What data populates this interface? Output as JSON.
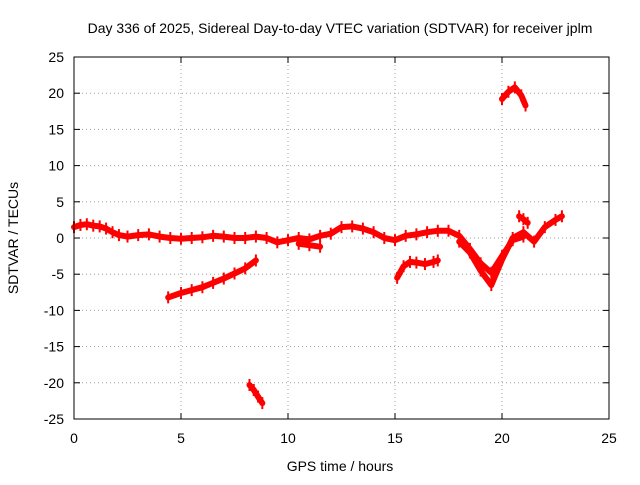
{
  "chart_data": {
    "type": "scatter",
    "title": "Day 336 of 2025, Sidereal Day-to-day VTEC variation (SDTVAR) for receiver jplm",
    "xlabel": "GPS time / hours",
    "ylabel": "SDTVAR / TECUs",
    "xlim": [
      0,
      25
    ],
    "ylim": [
      -25,
      25
    ],
    "xticks": [
      0,
      5,
      10,
      15,
      20,
      25
    ],
    "yticks": [
      -25,
      -20,
      -15,
      -10,
      -5,
      0,
      5,
      10,
      15,
      20,
      25
    ],
    "grid": true,
    "legend": "none",
    "series": [
      {
        "name": "main-band",
        "color": "#ff0000",
        "x": [
          0.0,
          0.3,
          0.6,
          0.9,
          1.2,
          1.5,
          1.8,
          2.1,
          2.5,
          3.0,
          3.5,
          4.0,
          4.5,
          5.0,
          5.5,
          6.0,
          6.5,
          7.0,
          7.5,
          8.0,
          8.5,
          9.0,
          9.5,
          10.0,
          10.5,
          11.0,
          11.5,
          12.0,
          12.5,
          13.0,
          13.5,
          14.0,
          14.5,
          15.0,
          15.5,
          16.0,
          16.5,
          17.0,
          17.5,
          18.0,
          18.5,
          19.0,
          19.5,
          20.0,
          20.5,
          21.0
        ],
        "y": [
          1.5,
          1.8,
          1.9,
          1.7,
          1.6,
          1.3,
          0.8,
          0.4,
          0.2,
          0.4,
          0.5,
          0.2,
          0.0,
          -0.1,
          0.0,
          0.1,
          0.3,
          0.2,
          0.0,
          0.0,
          0.2,
          0.0,
          -0.6,
          -0.3,
          0.0,
          -0.2,
          0.3,
          0.6,
          1.5,
          1.6,
          1.3,
          0.8,
          0.0,
          -0.3,
          0.3,
          0.5,
          0.8,
          1.0,
          1.0,
          0.3,
          -1.5,
          -3.5,
          -4.8,
          -2.5,
          -0.3,
          0.2
        ]
      },
      {
        "name": "upper-excursion-9-11h",
        "color": "#ff0000",
        "x": [
          10.5,
          11.0,
          11.5
        ],
        "y": [
          -0.8,
          -1.0,
          -1.2
        ]
      },
      {
        "name": "afternoon-band",
        "color": "#ff0000",
        "x": [
          18.0,
          18.5,
          19.0,
          19.5,
          20.0,
          20.5,
          21.0,
          21.5,
          22.0,
          22.5,
          22.8
        ],
        "y": [
          -0.5,
          -2.0,
          -4.5,
          -6.5,
          -3.0,
          0.0,
          0.8,
          -0.5,
          1.5,
          2.5,
          3.0
        ]
      },
      {
        "name": "rising-segment",
        "color": "#ff0000",
        "x": [
          4.4,
          5.0,
          5.5,
          6.0,
          6.5,
          7.0,
          7.5,
          8.0,
          8.5
        ],
        "y": [
          -8.2,
          -7.6,
          -7.2,
          -6.8,
          -6.2,
          -5.6,
          -4.9,
          -4.2,
          -3.1
        ]
      },
      {
        "name": "dip-segment-15-17h",
        "color": "#ff0000",
        "x": [
          15.1,
          15.4,
          15.7,
          16.0,
          16.4,
          16.8,
          17.0
        ],
        "y": [
          -5.5,
          -3.9,
          -3.3,
          -3.4,
          -3.6,
          -3.3,
          -3.1
        ]
      },
      {
        "name": "low-segment",
        "color": "#ff0000",
        "x": [
          8.2,
          8.4,
          8.6,
          8.8
        ],
        "y": [
          -20.3,
          -21.0,
          -21.9,
          -22.8
        ]
      },
      {
        "name": "high-segment",
        "color": "#ff0000",
        "x": [
          20.0,
          20.3,
          20.6,
          20.9,
          21.1
        ],
        "y": [
          19.2,
          20.2,
          20.8,
          19.7,
          18.3
        ]
      },
      {
        "name": "small-segment-21h",
        "color": "#ff0000",
        "x": [
          20.8,
          21.0,
          21.2
        ],
        "y": [
          3.0,
          2.6,
          2.1
        ]
      }
    ]
  }
}
